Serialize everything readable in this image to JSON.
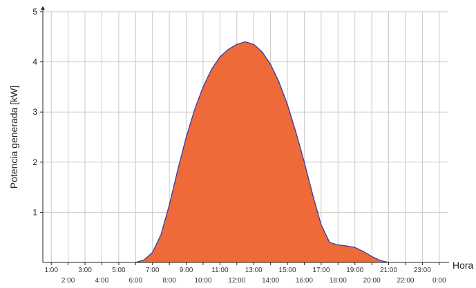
{
  "chart_data": {
    "type": "area",
    "ylabel": "Potencia generada [kW]",
    "xlabel": "Hora",
    "ylim": [
      0,
      5
    ],
    "xlim": [
      0.5,
      24.5
    ],
    "yticks": [
      1,
      2,
      3,
      4,
      5
    ],
    "xtick_rows": {
      "upper": [
        "1:00",
        "3:00",
        "5:00",
        "7:00",
        "9:00",
        "11:00",
        "13:00",
        "15:00",
        "17:00",
        "19:00",
        "21:00",
        "23:00"
      ],
      "lower": [
        "2:00",
        "4:00",
        "6:00",
        "8:00",
        "10:00",
        "12:00",
        "14:00",
        "16:00",
        "18:00",
        "20:00",
        "22:00",
        "0:00"
      ]
    },
    "grid": true,
    "colors": {
      "fill": "#ee6a38",
      "line": "#3a3aa0",
      "grid": "#c8c8c8"
    },
    "series": [
      {
        "x": [
          6.0,
          6.5,
          7.0,
          7.5,
          8.0,
          8.5,
          9.0,
          9.5,
          10.0,
          10.5,
          11.0,
          11.5,
          12.0,
          12.5,
          13.0,
          13.5,
          14.0,
          14.5,
          15.0,
          15.5,
          16.0,
          16.5,
          17.0,
          17.5,
          18.0,
          18.5,
          19.0,
          19.5,
          20.0,
          20.5,
          21.0
        ],
        "y": [
          0.0,
          0.05,
          0.2,
          0.55,
          1.15,
          1.85,
          2.5,
          3.05,
          3.5,
          3.85,
          4.1,
          4.25,
          4.35,
          4.4,
          4.35,
          4.2,
          3.95,
          3.6,
          3.15,
          2.6,
          2.0,
          1.35,
          0.75,
          0.4,
          0.35,
          0.33,
          0.3,
          0.22,
          0.12,
          0.04,
          0.0
        ]
      }
    ]
  }
}
